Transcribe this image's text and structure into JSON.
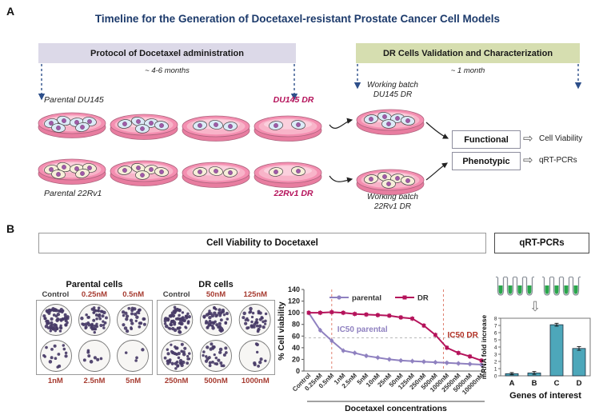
{
  "panelA": {
    "label": "A",
    "title": "Timeline for the Generation of Docetaxel-resistant Prostate Cancer Cell Models",
    "protocol_box": "Protocol of Docetaxel administration",
    "protocol_duration": "~ 4-6 months",
    "validation_box": "DR Cells Validation and Characterization",
    "validation_duration": "~ 1 month",
    "parental_du145": "Parental DU145",
    "du145_dr": "DU145 DR",
    "parental_22rv1": "Parental 22Rv1",
    "rv1_dr": "22Rv1 DR",
    "working_batch_du145": {
      "line1": "Working batch",
      "line2": "DU145 DR"
    },
    "working_batch_22rv1": {
      "line1": "Working batch",
      "line2": "22Rv1 DR"
    },
    "functional_box": "Functional",
    "phenotypic_box": "Phenotypic",
    "functional_result": "Cell Viability",
    "phenotypic_result": "qRT-PCRs",
    "timeline_dishes": {
      "du145": {
        "cell_color": "#dcebf7",
        "counts": [
          6,
          5,
          3,
          2
        ],
        "working_count": 5
      },
      "rv1": {
        "cell_color": "#f7efd9",
        "counts": [
          6,
          5,
          3,
          2
        ],
        "working_count": 5
      }
    }
  },
  "panelB": {
    "label": "B",
    "viability_header": "Cell Viability to Docetaxel",
    "qrtpcr_header": "qRT-PCRs",
    "colony_assays": [
      {
        "title": "Parental cells",
        "top_labels": [
          "Control",
          "0.25nM",
          "0.5nM"
        ],
        "bottom_labels": [
          "1nM",
          "2.5nM",
          "5nM"
        ],
        "colony_counts": [
          65,
          48,
          30,
          15,
          8,
          4
        ]
      },
      {
        "title": "DR cells",
        "top_labels": [
          "Control",
          "50nM",
          "125nM"
        ],
        "bottom_labels": [
          "250nM",
          "500nM",
          "1000nM"
        ],
        "colony_counts": [
          65,
          52,
          38,
          42,
          28,
          9
        ]
      }
    ],
    "qrtpcr_tubes": {
      "groups": [
        4,
        4
      ]
    }
  },
  "chart_data": [
    {
      "type": "line",
      "title": "",
      "categories": [
        "Control",
        "0.25nM",
        "0.5nM",
        "1nM",
        "2.5nM",
        "5nM",
        "10nM",
        "25nM",
        "50nM",
        "125nM",
        "250nM",
        "500nM",
        "1000nM",
        "2500nM",
        "5000nM",
        "10000nM"
      ],
      "series": [
        {
          "name": "parental",
          "color": "#8f81c0",
          "marker": "circle",
          "values": [
            100,
            70,
            52,
            35,
            31,
            26,
            23,
            20,
            18,
            17,
            16,
            15,
            14,
            13,
            12,
            11
          ]
        },
        {
          "name": "DR",
          "color": "#b5135b",
          "marker": "square",
          "values": [
            100,
            100,
            101,
            100,
            98,
            97,
            96,
            95,
            92,
            90,
            78,
            62,
            40,
            31,
            25,
            18
          ]
        }
      ],
      "ylabel": "% Cell viability",
      "xlabel": "Docetaxel concentrations",
      "ylim": [
        0,
        140
      ],
      "ytick_step": 20,
      "legend_position": "top-inside",
      "grid": false,
      "hline_y": 57,
      "ic50_vlines": [
        {
          "x_index": 2
        },
        {
          "x_index": 11.7
        }
      ],
      "annotations": [
        {
          "text": "IC50 parental",
          "color": "#8f81c0"
        },
        {
          "text": "IC50 DR",
          "color": "#b03024"
        }
      ]
    },
    {
      "type": "bar",
      "title": "",
      "categories": [
        "A",
        "B",
        "C",
        "D"
      ],
      "values": [
        0.3,
        0.4,
        7.1,
        3.8
      ],
      "errors": [
        0.15,
        0.2,
        0.2,
        0.25
      ],
      "bar_color": "#4da7ba",
      "ylabel": "mRNA fold increase",
      "xlabel": "Genes of interest",
      "ylim": [
        0,
        8
      ],
      "ytick_step": 1,
      "grid": false
    }
  ],
  "colors": {
    "title_navy": "#1c3a6b",
    "protocol_box_bg": "#dcd9e8",
    "validation_box_bg": "#d6deb0",
    "dr_magenta": "#b5135b",
    "dashed_arrow_blue": "#2d4f8a",
    "concentration_red": "#a63b30",
    "colony_dot_purple": "#463a66",
    "parental_series": "#8f81c0",
    "dr_series": "#b5135b",
    "bar_teal": "#4da7ba",
    "tube_liquid_green": "#2aa64c"
  }
}
